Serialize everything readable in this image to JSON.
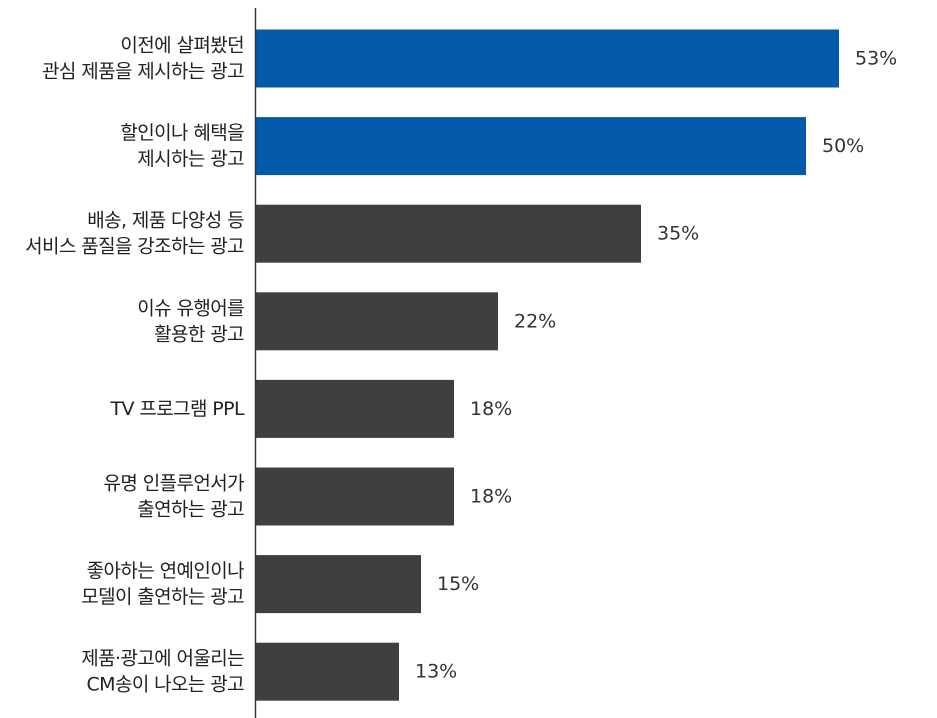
{
  "chart_data": {
    "type": "bar",
    "orientation": "horizontal",
    "categories": [
      [
        "이전에 살펴봤던",
        "관심 제품을 제시하는 광고"
      ],
      [
        "할인이나 혜택을",
        "제시하는 광고"
      ],
      [
        "배송, 제품 다양성 등",
        "서비스 품질을 강조하는 광고"
      ],
      [
        "이슈 유행어를",
        "활용한 광고"
      ],
      [
        "TV 프로그램 PPL"
      ],
      [
        "유명 인플루언서가",
        "출연하는 광고"
      ],
      [
        "좋아하는 연예인이나",
        "모델이 출연하는 광고"
      ],
      [
        "제품·광고에 어울리는",
        "CM송이 나오는 광고"
      ]
    ],
    "values": [
      53,
      50,
      35,
      22,
      18,
      18,
      15,
      13
    ],
    "value_labels": [
      "53%",
      "50%",
      "35%",
      "22%",
      "18%",
      "18%",
      "15%",
      "13%"
    ],
    "unit": "%",
    "highlight_indices": [
      0,
      1
    ],
    "colors": {
      "highlight": "#035aab",
      "default": "#3f3f3f",
      "axis": "#333333"
    },
    "xlim": [
      0,
      100
    ],
    "grid": false,
    "legend": "none"
  }
}
